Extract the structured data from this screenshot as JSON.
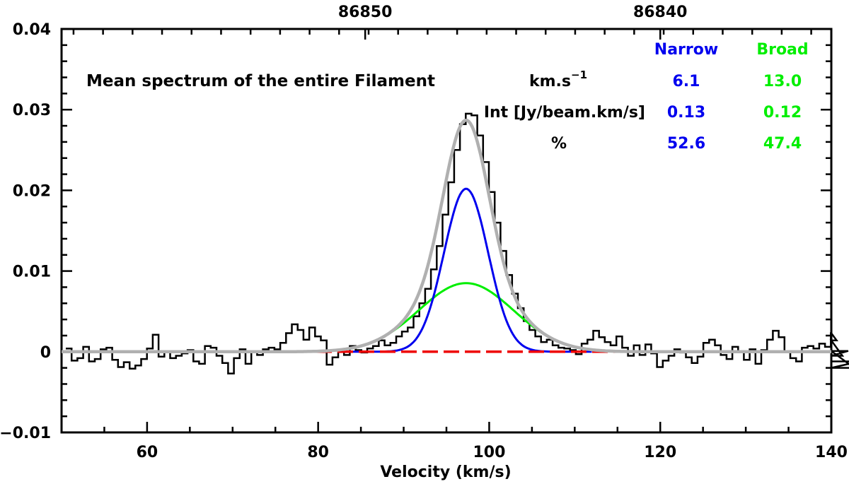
{
  "chart_data": {
    "type": "line",
    "title": "Mean spectrum of the entire Filament",
    "xlabel": "Velocity (km/s)",
    "ylabel": "",
    "xlim": [
      50,
      140
    ],
    "ylim": [
      -0.01,
      0.04
    ],
    "x_ticks": [
      60,
      80,
      100,
      120,
      140
    ],
    "y_ticks": [
      -0.01,
      0,
      0.01,
      0.02,
      0.03,
      0.04
    ],
    "x_tick_labels": [
      "60",
      "80",
      "100",
      "120",
      "140"
    ],
    "y_tick_labels": [
      "−0.01",
      "0",
      "0.01",
      "0.02",
      "0.03",
      "0.04"
    ],
    "top_axis": {
      "label_positions_velocity": [
        85.5,
        120.0
      ],
      "labels": [
        "86850",
        "86840"
      ]
    },
    "table": {
      "headers": [
        "Narrow",
        "Broad"
      ],
      "rows": [
        {
          "label_main": "km.s",
          "label_sup": "−1",
          "narrow": "6.1",
          "broad": "13.0"
        },
        {
          "label_main": "Int [Jy/beam.km/s]",
          "label_sup": "",
          "narrow": "0.13",
          "broad": "0.12"
        },
        {
          "label_main": "%",
          "label_sup": "",
          "narrow": "52.6",
          "broad": "47.4"
        }
      ]
    },
    "colors": {
      "spectrum": "#000000",
      "narrow": "#0000ee",
      "broad": "#00ee00",
      "total": "#b0b0b0",
      "baseline": "#ee0000"
    },
    "series": [
      {
        "name": "Observed spectrum",
        "style": "histogram",
        "x_start": 50.5,
        "channel_width": 0.6776,
        "values": [
          0.0004,
          -0.0011,
          -0.0008,
          0.0006,
          -0.0012,
          -0.0009,
          0.0003,
          0.0005,
          -0.001,
          -0.0019,
          -0.0013,
          -0.0021,
          -0.0017,
          -0.0009,
          0.0004,
          0.0021,
          -0.0006,
          0.0001,
          -0.0008,
          -0.0005,
          -0.0002,
          0.0002,
          -0.0012,
          -0.0015,
          0.0007,
          0.0005,
          -0.0005,
          -0.0014,
          -0.0027,
          -0.0008,
          0.0003,
          -0.0015,
          0.0,
          -0.0004,
          0.0003,
          0.0005,
          0.0003,
          0.0011,
          0.0023,
          0.0034,
          0.0027,
          0.0015,
          0.003,
          0.0019,
          0.0014,
          -0.0016,
          -0.0007,
          0.0002,
          -0.0004,
          0.0007,
          0.0002,
          -0.0001,
          0.0004,
          0.0007,
          0.0014,
          0.0008,
          0.0011,
          0.0019,
          0.0025,
          0.003,
          0.0044,
          0.006,
          0.0078,
          0.0102,
          0.0131,
          0.017,
          0.021,
          0.025,
          0.0282,
          0.0295,
          0.0293,
          0.0268,
          0.0235,
          0.0198,
          0.016,
          0.0125,
          0.0095,
          0.0072,
          0.0054,
          0.0038,
          0.0027,
          0.0019,
          0.0012,
          0.0015,
          0.0008,
          0.0005,
          0.0004,
          0.0002,
          -0.0003,
          0.001,
          0.0015,
          0.0026,
          0.0018,
          0.0012,
          0.0008,
          0.0019,
          0.0005,
          -0.0005,
          0.0008,
          -0.0004,
          0.0009,
          -0.0002,
          -0.0019,
          -0.0011,
          -0.0005,
          0.0003,
          -0.0001,
          -0.0007,
          -0.0014,
          -0.0006,
          0.0011,
          0.0015,
          0.0008,
          -0.0004,
          -0.0009,
          0.0006,
          0.0001,
          -0.001,
          0.0003,
          -0.0015,
          0.0002,
          0.0015,
          0.0026,
          0.0018,
          0.0,
          -0.0008,
          -0.0012,
          0.0005,
          0.0007,
          0.0004,
          0.001,
          0.0006,
          0.0023,
          0.0014,
          -0.0005,
          0.0001,
          -0.002,
          -0.0012
        ]
      },
      {
        "name": "Narrow",
        "style": "gaussian",
        "amplitude": 0.0202,
        "center": 97.3,
        "fwhm": 6.1
      },
      {
        "name": "Broad",
        "style": "gaussian",
        "amplitude": 0.0085,
        "center": 97.3,
        "fwhm": 13.0
      },
      {
        "name": "Total fit",
        "style": "sum"
      },
      {
        "name": "Baseline",
        "style": "hline",
        "y": 0
      }
    ]
  }
}
